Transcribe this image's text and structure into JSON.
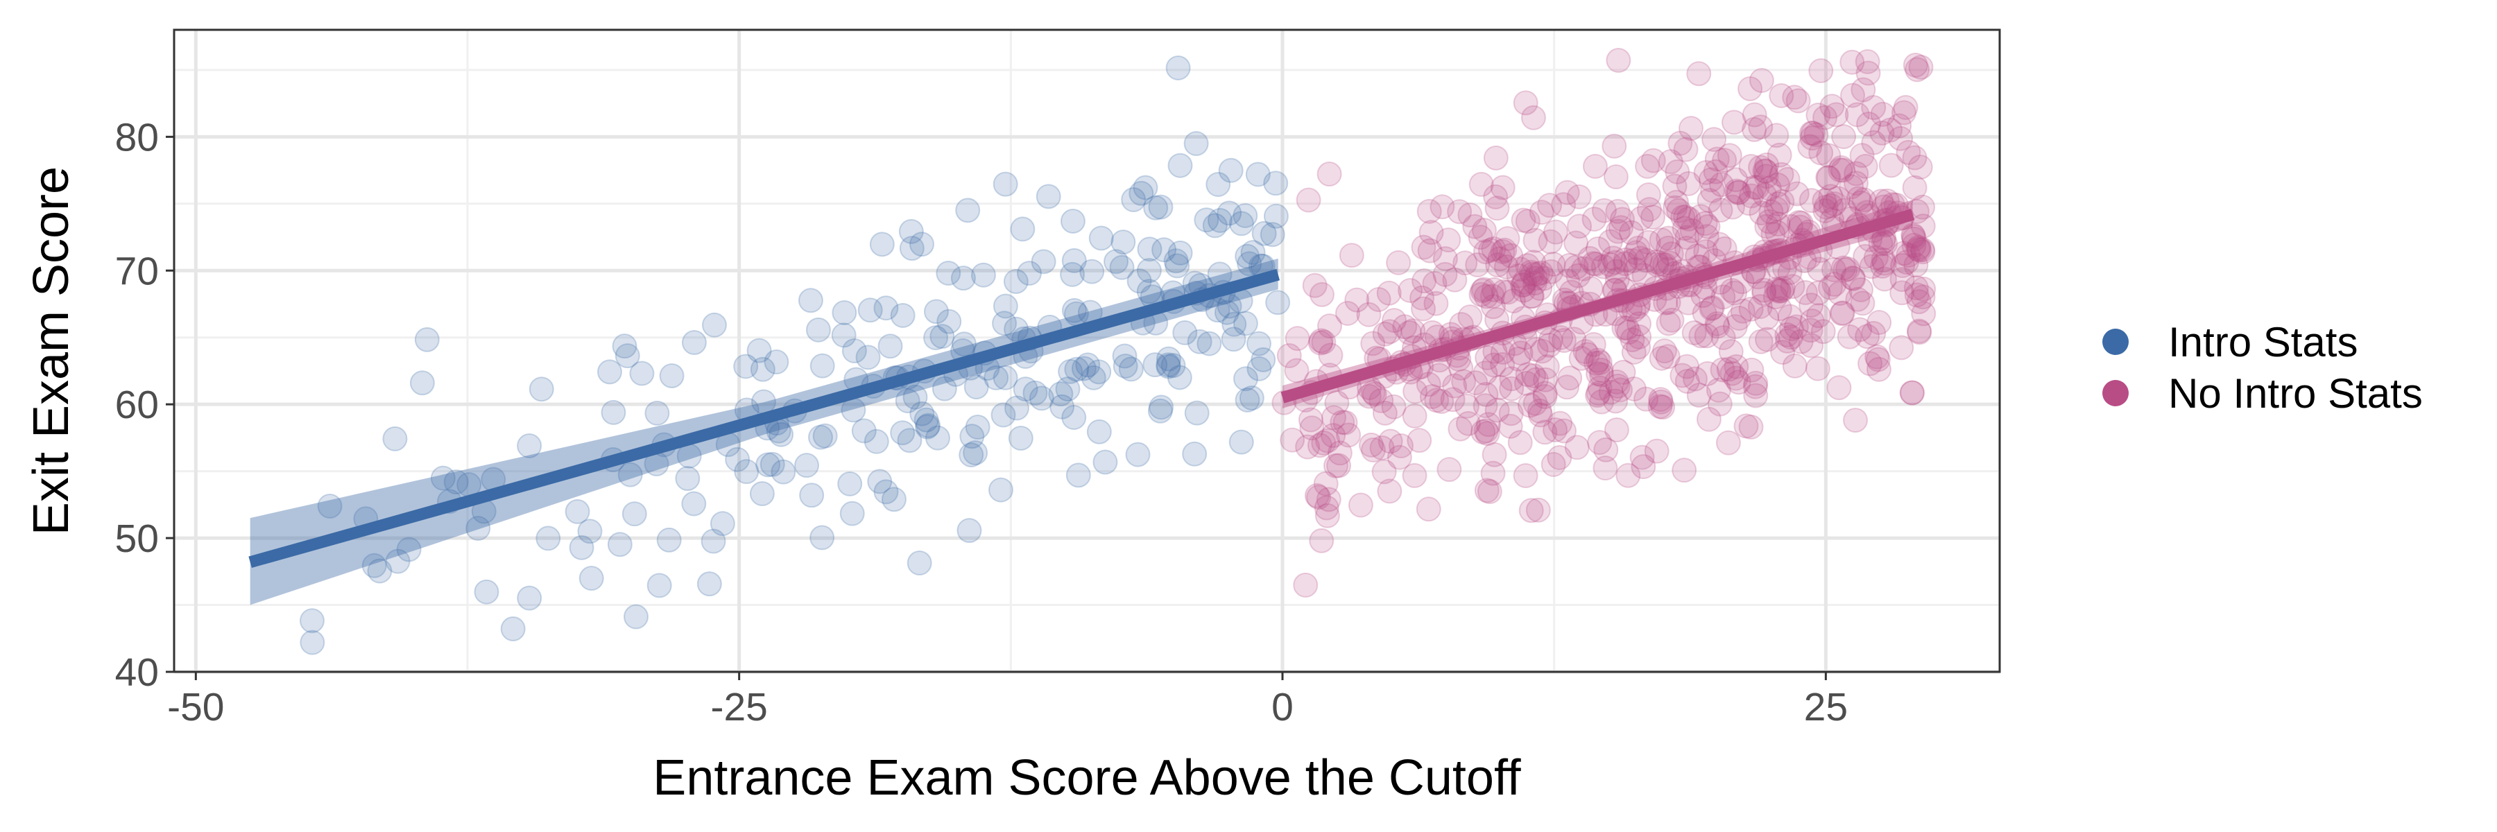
{
  "chart_data": {
    "type": "scatter",
    "xlabel": "Entrance Exam Score Above the Cutoff",
    "ylabel": "Exit Exam Score",
    "xlim": [
      -51,
      33
    ],
    "ylim": [
      40,
      88
    ],
    "x_ticks": [
      -50,
      -25,
      0,
      25
    ],
    "x_tick_labels": [
      "-50",
      "-25",
      "0",
      "25"
    ],
    "y_ticks": [
      40,
      50,
      60,
      70,
      80
    ],
    "y_tick_labels": [
      "40",
      "50",
      "60",
      "70",
      "80"
    ],
    "grid": true,
    "legend_position": "right",
    "series": [
      {
        "name": "Intro Stats",
        "color": "#3B6AA6",
        "x_range": [
          -46.8,
          -0.2
        ],
        "n_points": 260,
        "fit_line": {
          "x": [
            -47.5,
            -0.2
          ],
          "y": [
            48.2,
            69.7
          ]
        },
        "confidence_band": {
          "x": [
            -47.5,
            -0.2
          ],
          "lower": [
            45.0,
            68.6
          ],
          "upper": [
            51.5,
            70.9
          ]
        }
      },
      {
        "name": "No Intro Stats",
        "color": "#B84C85",
        "x_range": [
          0,
          29.5
        ],
        "n_points": 740,
        "fit_line": {
          "x": [
            0,
            29
          ],
          "y": [
            60.5,
            74.2
          ]
        },
        "confidence_band": {
          "x": [
            0,
            29
          ],
          "lower": [
            59.7,
            73.2
          ],
          "upper": [
            61.4,
            75.3
          ]
        }
      }
    ]
  }
}
